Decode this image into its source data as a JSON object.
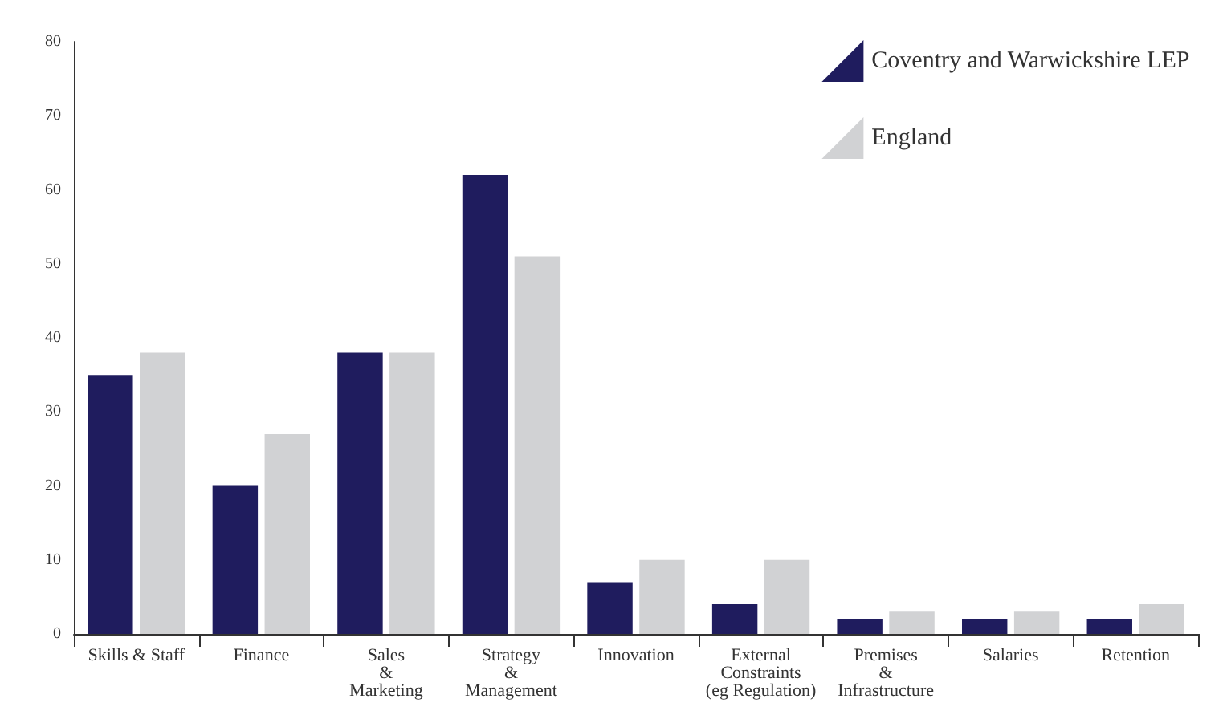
{
  "chart_data": {
    "type": "bar",
    "categories": [
      "Skills & Staff",
      "Finance",
      "Sales\n&\nMarketing",
      "Strategy\n&\nManagement",
      "Innovation",
      "External\nConstraints\n(eg Regulation)",
      "Premises\n&\nInfrastructure",
      "Salaries",
      "Retention"
    ],
    "series": [
      {
        "name": "Coventry and Warwickshire LEP",
        "color": "#1f1c5e",
        "values": [
          35,
          20,
          38,
          62,
          7,
          4,
          2,
          2,
          2
        ]
      },
      {
        "name": "England",
        "color": "#d1d2d4",
        "values": [
          38,
          27,
          38,
          51,
          10,
          10,
          3,
          3,
          4
        ]
      }
    ],
    "ylim": [
      0,
      80
    ],
    "yticks": [
      0,
      10,
      20,
      30,
      40,
      50,
      60,
      70,
      80
    ],
    "grid": false,
    "legend": "top right"
  }
}
